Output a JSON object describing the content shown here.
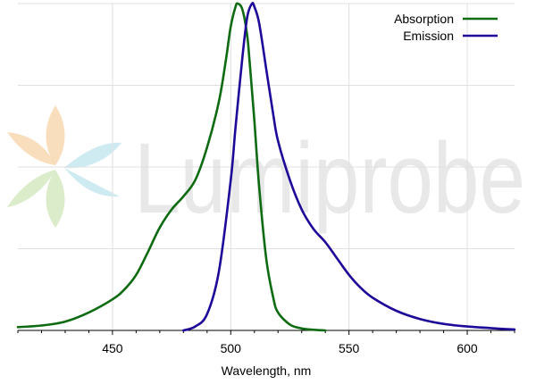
{
  "watermark": {
    "text": "Lumiprobe"
  },
  "chart_data": {
    "type": "line",
    "xlabel": "Wavelength, nm",
    "ylabel": "",
    "xlim": [
      410,
      620
    ],
    "ylim": [
      0,
      1.0
    ],
    "x_ticks": [
      450,
      500,
      550,
      600
    ],
    "grid": true,
    "legend_position": "top-right",
    "series": [
      {
        "name": "Absorption",
        "color": "#0e6b12",
        "x": [
          410,
          420,
          430,
          440,
          450,
          455,
          460,
          465,
          470,
          475,
          480,
          485,
          490,
          495,
          498,
          500,
          502,
          503,
          505,
          507,
          508,
          510,
          512,
          515,
          518,
          520,
          525,
          530,
          535,
          540
        ],
        "y": [
          0.01,
          0.015,
          0.027,
          0.055,
          0.095,
          0.125,
          0.17,
          0.24,
          0.315,
          0.37,
          0.41,
          0.46,
          0.56,
          0.7,
          0.83,
          0.93,
          0.99,
          1.0,
          0.98,
          0.9,
          0.82,
          0.64,
          0.44,
          0.22,
          0.1,
          0.055,
          0.018,
          0.006,
          0.002,
          0.0
        ]
      },
      {
        "name": "Emission",
        "color": "#1d0a99",
        "x": [
          480,
          485,
          490,
          495,
          500,
          502,
          505,
          507,
          509,
          510,
          512,
          515,
          518,
          520,
          525,
          530,
          535,
          540,
          545,
          550,
          555,
          560,
          570,
          580,
          590,
          600,
          610,
          620
        ],
        "y": [
          0.0,
          0.012,
          0.05,
          0.18,
          0.46,
          0.62,
          0.84,
          0.96,
          1.0,
          0.99,
          0.94,
          0.8,
          0.66,
          0.58,
          0.46,
          0.37,
          0.31,
          0.27,
          0.22,
          0.17,
          0.13,
          0.1,
          0.06,
          0.035,
          0.02,
          0.012,
          0.007,
          0.003
        ]
      }
    ]
  }
}
